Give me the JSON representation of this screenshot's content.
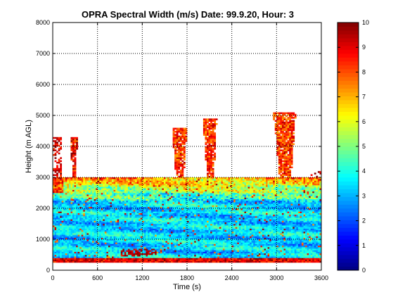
{
  "chart_data": {
    "type": "heatmap",
    "title": "OPRA Spectral Width (m/s)  Date: 99.9.20, Hour: 3",
    "xlabel": "Time (s)",
    "ylabel": "Height (m AGL)",
    "xlim": [
      0,
      3600
    ],
    "ylim": [
      0,
      8000
    ],
    "xticks": [
      "0",
      "600",
      "1200",
      "1800",
      "2400",
      "3000",
      "3600"
    ],
    "yticks": [
      "0",
      "1000",
      "2000",
      "3000",
      "4000",
      "5000",
      "6000",
      "7000",
      "8000"
    ],
    "grid": true,
    "colorbar": {
      "min": 0,
      "max": 10,
      "ticks": [
        "0",
        "1",
        "2",
        "3",
        "4",
        "5",
        "6",
        "7",
        "8",
        "9",
        "10"
      ],
      "colormap": "jet"
    },
    "regions": [
      {
        "name": "boundary-layer",
        "x": [
          0,
          3600
        ],
        "y": [
          300,
          3000
        ],
        "typical_value": 3.5
      },
      {
        "name": "upper-fringe",
        "x": [
          0,
          3600
        ],
        "y": [
          2200,
          3000
        ],
        "typical_value": 8
      },
      {
        "name": "ground-band",
        "x": [
          0,
          3600
        ],
        "y": [
          250,
          400
        ],
        "typical_value": 9
      },
      {
        "name": "plume-1",
        "x": [
          220,
          330
        ],
        "y": [
          3000,
          4300
        ],
        "typical_value": 9
      },
      {
        "name": "plume-2",
        "x": [
          1560,
          1800
        ],
        "y": [
          3000,
          4600
        ],
        "typical_value": 8.5
      },
      {
        "name": "plume-3",
        "x": [
          1980,
          2200
        ],
        "y": [
          3000,
          4900
        ],
        "typical_value": 8.5
      },
      {
        "name": "plume-4",
        "x": [
          2900,
          3260
        ],
        "y": [
          3000,
          5100
        ],
        "typical_value": 8.5
      }
    ]
  }
}
